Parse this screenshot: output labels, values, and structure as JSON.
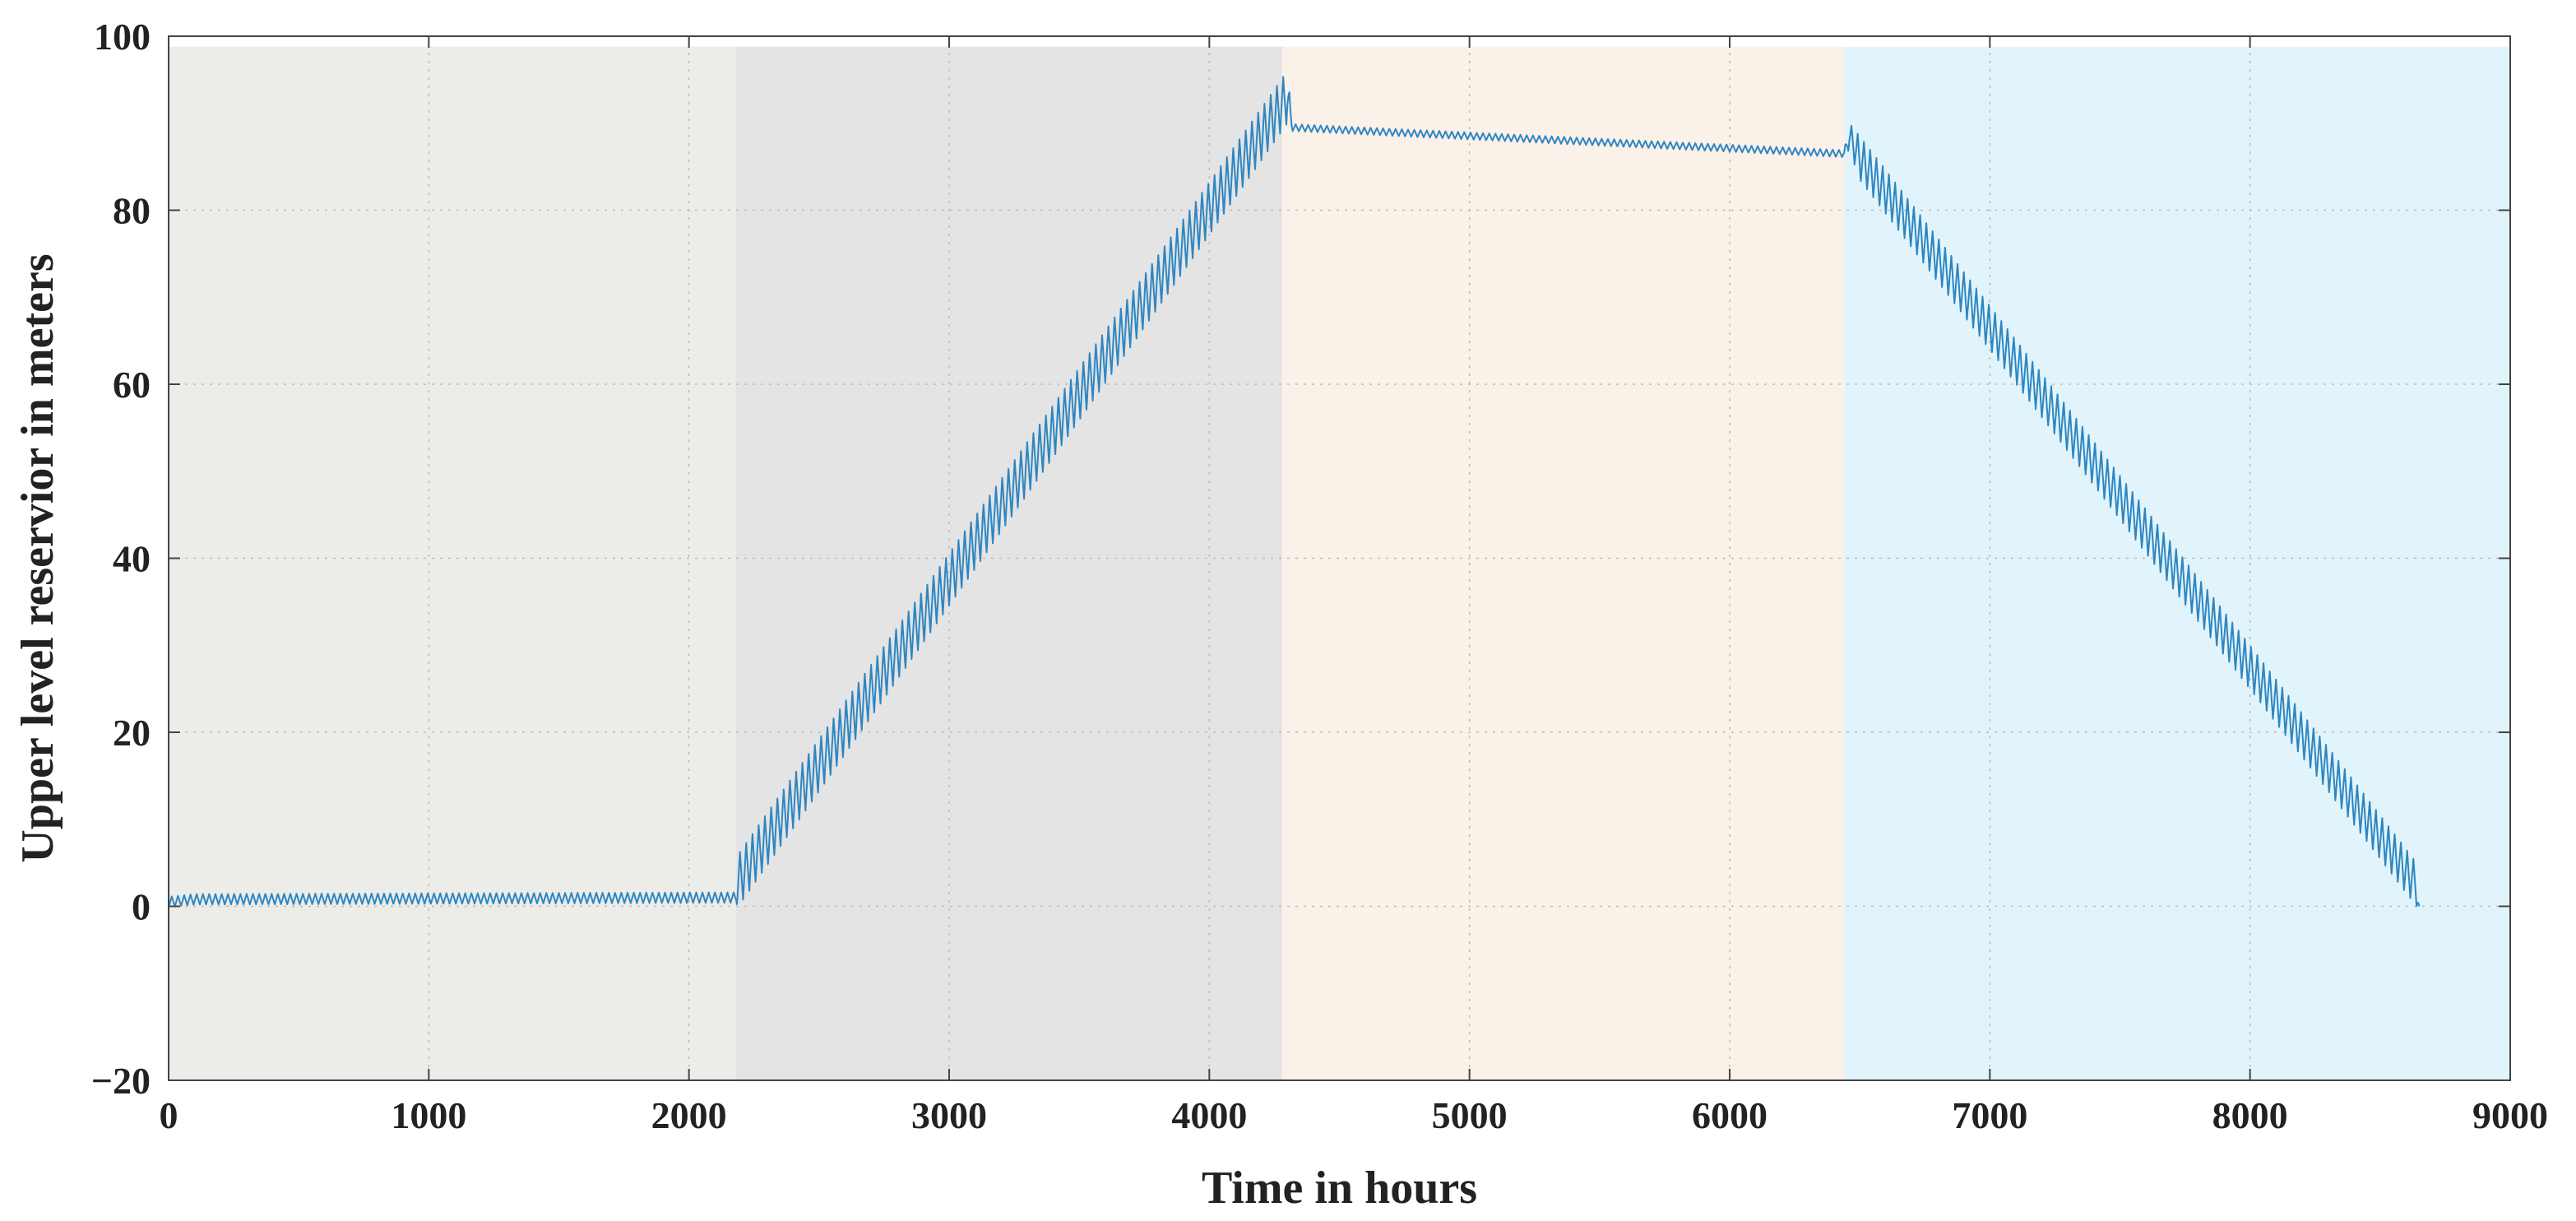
{
  "chart_data": {
    "type": "line",
    "xlabel": "Time in hours",
    "ylabel": "Upper level reservior in meters",
    "xlim": [
      0,
      9000
    ],
    "ylim": [
      -20,
      100
    ],
    "xticks": [
      0,
      1000,
      2000,
      3000,
      4000,
      5000,
      6000,
      7000,
      8000,
      9000
    ],
    "yticks": [
      -20,
      0,
      20,
      40,
      60,
      80,
      100
    ],
    "xtick_labels": [
      "0",
      "1000",
      "2000",
      "3000",
      "4000",
      "5000",
      "6000",
      "7000",
      "8000",
      "9000"
    ],
    "ytick_labels": [
      "−20",
      "0",
      "20",
      "40",
      "60",
      "80",
      "100"
    ],
    "grid": true,
    "line_color": "#2E86C1",
    "shaded_regions": [
      {
        "x_start": 0,
        "x_end": 2180,
        "color": "#ECECE8"
      },
      {
        "x_start": 2180,
        "x_end": 4280,
        "color": "#E4E4E4"
      },
      {
        "x_start": 4280,
        "x_end": 6440,
        "color": "#FAF1E8"
      },
      {
        "x_start": 6440,
        "x_end": 9000,
        "color": "#E2F4FB"
      }
    ],
    "series": [
      {
        "x": [
          0,
          100,
          2180,
          2190,
          4300,
          4320,
          6440,
          6460,
          6500,
          8640,
          8650
        ],
        "y": [
          0.5,
          0.8,
          1.0,
          3.0,
          93.0,
          89.5,
          86.5,
          88.5,
          86.0,
          2.5,
          -1.0
        ],
        "oscillation_amplitude": [
          1.2,
          1.2,
          1.2,
          6.0,
          6.0,
          0.8,
          0.8,
          3.0,
          5.0,
          5.0,
          3.0
        ]
      }
    ]
  }
}
